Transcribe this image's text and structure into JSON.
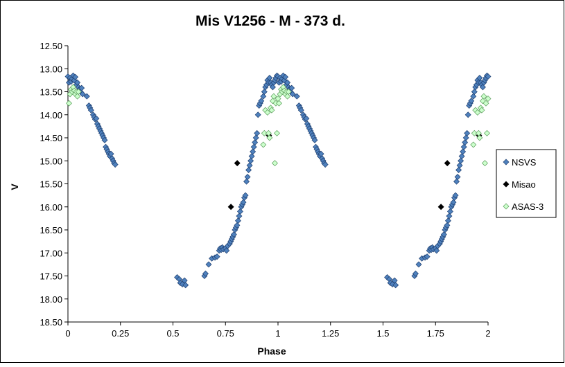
{
  "chart_data": {
    "type": "scatter",
    "title": "Mis V1256 - M - 373 d.",
    "xlabel": "Phase",
    "ylabel": "V",
    "xlim": [
      0,
      2
    ],
    "ylim": [
      12.5,
      18.5
    ],
    "y_inverted": true,
    "xticks": [
      "0",
      "0.25",
      "0.5",
      "0.75",
      "1",
      "1.25",
      "1.5",
      "1.75",
      "2"
    ],
    "xtick_values": [
      0,
      0.25,
      0.5,
      0.75,
      1,
      1.25,
      1.5,
      1.75,
      2
    ],
    "yticks": [
      "12.50",
      "13.00",
      "13.50",
      "14.00",
      "14.50",
      "15.00",
      "15.50",
      "16.00",
      "16.50",
      "17.00",
      "17.50",
      "18.00",
      "18.50"
    ],
    "ytick_values": [
      12.5,
      13.0,
      13.5,
      14.0,
      14.5,
      15.0,
      15.5,
      16.0,
      16.5,
      17.0,
      17.5,
      18.0,
      18.5
    ],
    "grid": false,
    "legend_position": "right",
    "series": [
      {
        "name": "NSVS",
        "marker": "diamond",
        "fill": "#4f81bd",
        "stroke": "#1f3f6f",
        "points": [
          [
            0.0,
            13.17
          ],
          [
            0.005,
            13.3
          ],
          [
            0.01,
            13.2
          ],
          [
            0.015,
            13.28
          ],
          [
            0.02,
            13.22
          ],
          [
            0.025,
            13.15
          ],
          [
            0.03,
            13.25
          ],
          [
            0.035,
            13.18
          ],
          [
            0.04,
            13.35
          ],
          [
            0.045,
            13.3
          ],
          [
            0.05,
            13.4
          ],
          [
            0.055,
            13.45
          ],
          [
            0.06,
            13.5
          ],
          [
            0.065,
            13.42
          ],
          [
            0.07,
            13.55
          ],
          [
            0.09,
            13.6
          ],
          [
            0.1,
            13.8
          ],
          [
            0.105,
            13.85
          ],
          [
            0.11,
            13.9
          ],
          [
            0.12,
            14.0
          ],
          [
            0.125,
            14.05
          ],
          [
            0.13,
            14.1
          ],
          [
            0.135,
            14.08
          ],
          [
            0.14,
            14.2
          ],
          [
            0.145,
            14.25
          ],
          [
            0.15,
            14.3
          ],
          [
            0.155,
            14.35
          ],
          [
            0.16,
            14.4
          ],
          [
            0.165,
            14.45
          ],
          [
            0.17,
            14.5
          ],
          [
            0.175,
            14.55
          ],
          [
            0.18,
            14.7
          ],
          [
            0.185,
            14.75
          ],
          [
            0.19,
            14.8
          ],
          [
            0.195,
            14.85
          ],
          [
            0.2,
            14.9
          ],
          [
            0.205,
            14.85
          ],
          [
            0.21,
            14.95
          ],
          [
            0.215,
            15.0
          ],
          [
            0.22,
            15.05
          ],
          [
            0.225,
            15.08
          ],
          [
            0.52,
            17.53
          ],
          [
            0.53,
            17.57
          ],
          [
            0.535,
            17.65
          ],
          [
            0.545,
            17.68
          ],
          [
            0.555,
            17.6
          ],
          [
            0.56,
            17.7
          ],
          [
            0.65,
            17.5
          ],
          [
            0.655,
            17.45
          ],
          [
            0.67,
            17.25
          ],
          [
            0.685,
            17.12
          ],
          [
            0.7,
            17.1
          ],
          [
            0.71,
            17.08
          ],
          [
            0.72,
            16.95
          ],
          [
            0.725,
            16.9
          ],
          [
            0.73,
            16.93
          ],
          [
            0.735,
            16.88
          ],
          [
            0.74,
            16.92
          ],
          [
            0.75,
            16.9
          ],
          [
            0.755,
            16.95
          ],
          [
            0.76,
            16.85
          ],
          [
            0.77,
            16.8
          ],
          [
            0.775,
            16.75
          ],
          [
            0.78,
            16.7
          ],
          [
            0.785,
            16.65
          ],
          [
            0.79,
            16.6
          ],
          [
            0.795,
            16.5
          ],
          [
            0.8,
            16.45
          ],
          [
            0.805,
            16.4
          ],
          [
            0.81,
            16.3
          ],
          [
            0.815,
            16.2
          ],
          [
            0.82,
            16.1
          ],
          [
            0.825,
            16.0
          ],
          [
            0.83,
            15.95
          ],
          [
            0.835,
            15.9
          ],
          [
            0.84,
            15.8
          ],
          [
            0.845,
            15.75
          ],
          [
            0.85,
            15.45
          ],
          [
            0.855,
            15.35
          ],
          [
            0.86,
            15.2
          ],
          [
            0.865,
            15.1
          ],
          [
            0.87,
            15.0
          ],
          [
            0.875,
            14.9
          ],
          [
            0.88,
            14.8
          ],
          [
            0.885,
            14.7
          ],
          [
            0.89,
            14.6
          ],
          [
            0.895,
            14.5
          ],
          [
            0.9,
            14.4
          ],
          [
            0.905,
            14.0
          ],
          [
            0.91,
            13.8
          ],
          [
            0.915,
            13.75
          ],
          [
            0.92,
            13.7
          ],
          [
            0.93,
            13.6
          ],
          [
            0.935,
            13.5
          ],
          [
            0.94,
            13.4
          ],
          [
            0.945,
            13.35
          ],
          [
            0.95,
            13.25
          ],
          [
            0.955,
            13.3
          ],
          [
            0.96,
            13.2
          ],
          [
            0.965,
            13.3
          ],
          [
            0.97,
            13.35
          ],
          [
            0.975,
            13.4
          ],
          [
            0.98,
            13.3
          ],
          [
            0.985,
            13.25
          ],
          [
            0.99,
            13.2
          ],
          [
            0.995,
            13.15
          ],
          [
            1.0,
            13.17
          ],
          [
            1.005,
            13.3
          ],
          [
            1.01,
            13.2
          ],
          [
            1.015,
            13.28
          ],
          [
            1.02,
            13.22
          ],
          [
            1.025,
            13.15
          ],
          [
            1.03,
            13.25
          ],
          [
            1.035,
            13.18
          ],
          [
            1.04,
            13.35
          ],
          [
            1.045,
            13.3
          ],
          [
            1.05,
            13.4
          ],
          [
            1.055,
            13.45
          ],
          [
            1.06,
            13.5
          ],
          [
            1.065,
            13.42
          ],
          [
            1.07,
            13.55
          ],
          [
            1.09,
            13.6
          ],
          [
            1.1,
            13.8
          ],
          [
            1.105,
            13.85
          ],
          [
            1.11,
            13.9
          ],
          [
            1.12,
            14.0
          ],
          [
            1.125,
            14.05
          ],
          [
            1.13,
            14.1
          ],
          [
            1.135,
            14.08
          ],
          [
            1.14,
            14.2
          ],
          [
            1.145,
            14.25
          ],
          [
            1.15,
            14.3
          ],
          [
            1.155,
            14.35
          ],
          [
            1.16,
            14.4
          ],
          [
            1.165,
            14.45
          ],
          [
            1.17,
            14.5
          ],
          [
            1.175,
            14.55
          ],
          [
            1.18,
            14.7
          ],
          [
            1.185,
            14.75
          ],
          [
            1.19,
            14.8
          ],
          [
            1.195,
            14.85
          ],
          [
            1.2,
            14.9
          ],
          [
            1.205,
            14.85
          ],
          [
            1.21,
            14.95
          ],
          [
            1.215,
            15.0
          ],
          [
            1.22,
            15.05
          ],
          [
            1.225,
            15.08
          ],
          [
            1.52,
            17.53
          ],
          [
            1.53,
            17.57
          ],
          [
            1.535,
            17.65
          ],
          [
            1.545,
            17.68
          ],
          [
            1.555,
            17.6
          ],
          [
            1.56,
            17.7
          ],
          [
            1.65,
            17.5
          ],
          [
            1.655,
            17.45
          ],
          [
            1.67,
            17.25
          ],
          [
            1.685,
            17.12
          ],
          [
            1.7,
            17.1
          ],
          [
            1.71,
            17.08
          ],
          [
            1.72,
            16.95
          ],
          [
            1.725,
            16.9
          ],
          [
            1.73,
            16.93
          ],
          [
            1.735,
            16.88
          ],
          [
            1.74,
            16.92
          ],
          [
            1.75,
            16.9
          ],
          [
            1.755,
            16.95
          ],
          [
            1.76,
            16.85
          ],
          [
            1.77,
            16.8
          ],
          [
            1.775,
            16.75
          ],
          [
            1.78,
            16.7
          ],
          [
            1.785,
            16.65
          ],
          [
            1.79,
            16.6
          ],
          [
            1.795,
            16.5
          ],
          [
            1.8,
            16.45
          ],
          [
            1.805,
            16.4
          ],
          [
            1.81,
            16.3
          ],
          [
            1.815,
            16.2
          ],
          [
            1.82,
            16.1
          ],
          [
            1.825,
            16.0
          ],
          [
            1.83,
            15.95
          ],
          [
            1.835,
            15.9
          ],
          [
            1.84,
            15.8
          ],
          [
            1.845,
            15.75
          ],
          [
            1.85,
            15.45
          ],
          [
            1.855,
            15.35
          ],
          [
            1.86,
            15.2
          ],
          [
            1.865,
            15.1
          ],
          [
            1.87,
            15.0
          ],
          [
            1.875,
            14.9
          ],
          [
            1.88,
            14.8
          ],
          [
            1.885,
            14.7
          ],
          [
            1.89,
            14.6
          ],
          [
            1.895,
            14.5
          ],
          [
            1.9,
            14.4
          ],
          [
            1.905,
            14.0
          ],
          [
            1.91,
            13.8
          ],
          [
            1.915,
            13.75
          ],
          [
            1.92,
            13.7
          ],
          [
            1.93,
            13.6
          ],
          [
            1.935,
            13.5
          ],
          [
            1.94,
            13.4
          ],
          [
            1.945,
            13.35
          ],
          [
            1.95,
            13.25
          ],
          [
            1.955,
            13.3
          ],
          [
            1.96,
            13.2
          ],
          [
            1.965,
            13.3
          ],
          [
            1.97,
            13.35
          ],
          [
            1.975,
            13.4
          ],
          [
            1.98,
            13.3
          ],
          [
            1.985,
            13.25
          ],
          [
            1.99,
            13.2
          ],
          [
            1.995,
            13.15
          ],
          [
            2.0,
            13.17
          ]
        ]
      },
      {
        "name": "Misao",
        "marker": "diamond",
        "fill": "#000000",
        "stroke": "#000000",
        "points": [
          [
            0.776,
            16.0
          ],
          [
            0.806,
            15.05
          ],
          [
            0.957,
            14.45
          ],
          [
            1.776,
            16.0
          ],
          [
            1.806,
            15.05
          ],
          [
            1.957,
            14.45
          ]
        ]
      },
      {
        "name": "ASAS-3",
        "marker": "diamond",
        "fill": "#ccffcc",
        "stroke": "#5a9a5a",
        "points": [
          [
            0.005,
            13.75
          ],
          [
            0.01,
            13.55
          ],
          [
            0.015,
            13.45
          ],
          [
            0.02,
            13.5
          ],
          [
            0.025,
            13.4
          ],
          [
            0.03,
            13.48
          ],
          [
            0.035,
            13.55
          ],
          [
            0.04,
            13.5
          ],
          [
            0.045,
            13.6
          ],
          [
            0.05,
            13.5
          ],
          [
            0.93,
            14.65
          ],
          [
            0.935,
            14.4
          ],
          [
            0.94,
            13.9
          ],
          [
            0.95,
            13.95
          ],
          [
            0.955,
            14.4
          ],
          [
            0.96,
            14.5
          ],
          [
            0.965,
            13.85
          ],
          [
            0.97,
            13.9
          ],
          [
            0.975,
            13.7
          ],
          [
            0.98,
            13.6
          ],
          [
            0.985,
            15.05
          ],
          [
            0.99,
            13.75
          ],
          [
            0.995,
            14.4
          ],
          [
            1.0,
            13.65
          ],
          [
            1.005,
            13.75
          ],
          [
            1.01,
            13.55
          ],
          [
            1.015,
            13.45
          ],
          [
            1.02,
            13.5
          ],
          [
            1.025,
            13.4
          ],
          [
            1.03,
            13.48
          ],
          [
            1.035,
            13.55
          ],
          [
            1.04,
            13.5
          ],
          [
            1.045,
            13.6
          ],
          [
            1.05,
            13.5
          ],
          [
            1.93,
            14.65
          ],
          [
            1.935,
            14.4
          ],
          [
            1.94,
            13.9
          ],
          [
            1.95,
            13.95
          ],
          [
            1.955,
            14.4
          ],
          [
            1.96,
            14.5
          ],
          [
            1.965,
            13.85
          ],
          [
            1.97,
            13.9
          ],
          [
            1.975,
            13.7
          ],
          [
            1.98,
            13.6
          ],
          [
            1.985,
            15.05
          ],
          [
            1.99,
            13.75
          ],
          [
            1.995,
            14.4
          ],
          [
            2.0,
            13.65
          ]
        ]
      }
    ]
  }
}
